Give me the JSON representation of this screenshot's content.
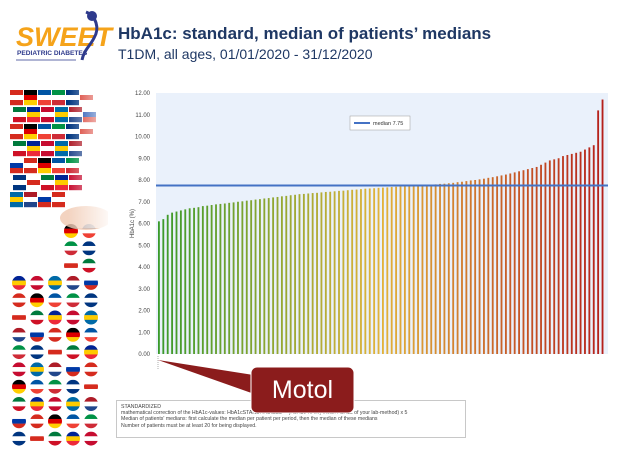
{
  "header": {
    "logo_text": "SWEET",
    "logo_subtext": "PEDIATRIC DIABETES",
    "title": "HbA1c: standard, median of patients’ medians",
    "subtitle": "T1DM, all ages, 01/01/2020 - 31/12/2020"
  },
  "colors": {
    "title": "#1f3864",
    "median_line": "#4472c4",
    "plot_bg": "#eaf1fb",
    "callout": "#8b1c1c",
    "bars_low": "#3a9a2a",
    "bars_mid": "#e2b33a",
    "bars_high": "#b5201b"
  },
  "chart_data": {
    "type": "bar",
    "ylabel": "HbA1c (%)",
    "ylim": [
      0,
      12
    ],
    "y_ticks": [
      "0.00",
      "1.00",
      "2.00",
      "3.00",
      "4.00",
      "5.00",
      "6.00",
      "7.00",
      "8.00",
      "9.00",
      "10.00",
      "11.00",
      "12.00"
    ],
    "grid": false,
    "legend": "top-left",
    "median": {
      "label": "median 7.75",
      "value": 7.75
    },
    "highlighted_center": "Motol",
    "series": [
      {
        "values": [
          6.1,
          6.2,
          6.4,
          6.5,
          6.55,
          6.6,
          6.65,
          6.7,
          6.72,
          6.75,
          6.8,
          6.82,
          6.85,
          6.88,
          6.9,
          6.92,
          6.95,
          6.97,
          7.0,
          7.02,
          7.05,
          7.07,
          7.1,
          7.12,
          7.15,
          7.17,
          7.2,
          7.22,
          7.25,
          7.27,
          7.3,
          7.32,
          7.35,
          7.36,
          7.38,
          7.4,
          7.41,
          7.43,
          7.45,
          7.46,
          7.48,
          7.5,
          7.51,
          7.53,
          7.55,
          7.56,
          7.58,
          7.6,
          7.61,
          7.62,
          7.64,
          7.65,
          7.66,
          7.68,
          7.69,
          7.7,
          7.72,
          7.73,
          7.74,
          7.75,
          7.76,
          7.78,
          7.79,
          7.8,
          7.82,
          7.83,
          7.85,
          7.87,
          7.9,
          7.92,
          7.95,
          7.98,
          8.0,
          8.03,
          8.06,
          8.1,
          8.13,
          8.17,
          8.21,
          8.25,
          8.3,
          8.35,
          8.4,
          8.45,
          8.5,
          8.55,
          8.6,
          8.7,
          8.8,
          8.9,
          8.95,
          9.0,
          9.1,
          9.15,
          9.2,
          9.25,
          9.3,
          9.4,
          9.5,
          9.6,
          11.2,
          11.7
        ]
      }
    ]
  },
  "notes": {
    "line1": "STANDARDIZED",
    "line2": "mathematical correction of the HbA1c-values:  HbA1cSTANDARDIZED = (HbA1c-RAW) mean HbA1c of your lab-method) x 5",
    "line3": "Median of patients' medians: first calculate the median per patient per period, then the median of these medians",
    "line4": "Number of patients must be at least 20 for being displayed."
  },
  "callout": {
    "label": "Motol"
  }
}
